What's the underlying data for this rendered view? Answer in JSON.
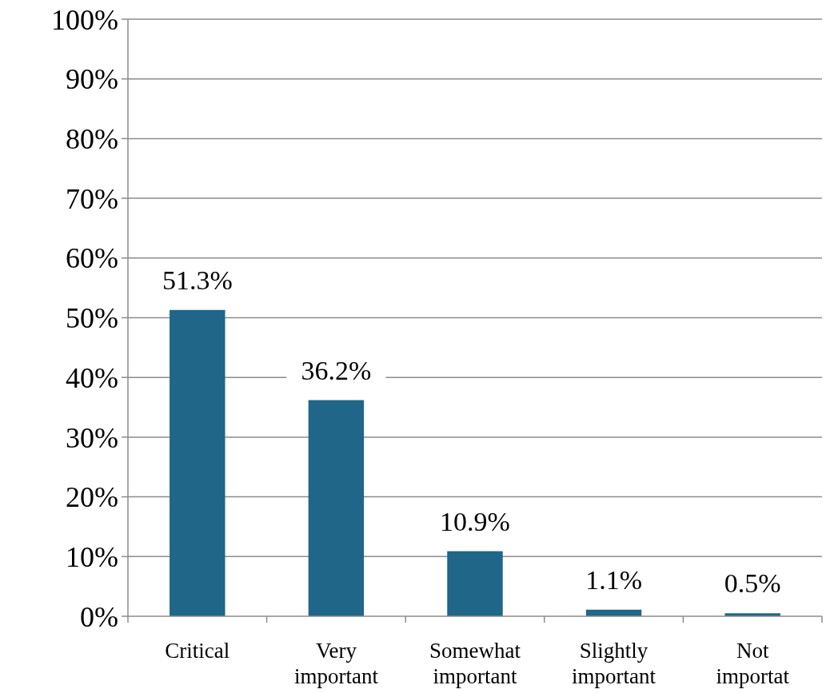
{
  "chart_data": {
    "type": "bar",
    "categories": [
      "Critical",
      "Very important",
      "Somewhat important",
      "Slightly important",
      "Not importat"
    ],
    "values": [
      51.3,
      36.2,
      10.9,
      1.1,
      0.5
    ],
    "value_labels": [
      "51.3%",
      "36.2%",
      "10.9%",
      "1.1%",
      "0.5%"
    ],
    "color": "#1f6688",
    "ylim": [
      0,
      100
    ],
    "yticks": [
      {
        "value": 0,
        "label": "0%"
      },
      {
        "value": 10,
        "label": "10%"
      },
      {
        "value": 20,
        "label": "20%"
      },
      {
        "value": 30,
        "label": "30%"
      },
      {
        "value": 40,
        "label": "40%"
      },
      {
        "value": 50,
        "label": "50%"
      },
      {
        "value": 60,
        "label": "60%"
      },
      {
        "value": 70,
        "label": "70%"
      },
      {
        "value": 80,
        "label": "80%"
      },
      {
        "value": 90,
        "label": "90%"
      },
      {
        "value": 100,
        "label": "100%"
      }
    ],
    "grid": "y"
  }
}
